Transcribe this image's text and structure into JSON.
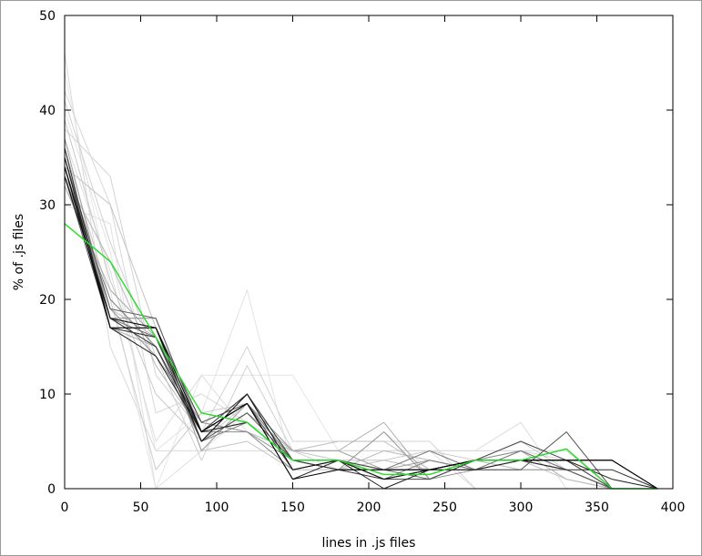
{
  "chart_data": {
    "type": "line",
    "title": "",
    "xlabel": "lines in .js files",
    "ylabel": "% of .js files",
    "xlim": [
      0,
      400
    ],
    "ylim": [
      0,
      50
    ],
    "xticks": [
      0,
      50,
      100,
      150,
      200,
      250,
      300,
      350,
      400
    ],
    "yticks": [
      0,
      10,
      20,
      30,
      40,
      50
    ],
    "grid": false,
    "legend": "none",
    "x": [
      0,
      30,
      60,
      90,
      120,
      150,
      180,
      210,
      240,
      270,
      300,
      330,
      360,
      390
    ],
    "series": [
      {
        "color": "#e6e6e6",
        "values": [
          44,
          21,
          0,
          12,
          12,
          12,
          4,
          4,
          4,
          4,
          4,
          4,
          0,
          0
        ]
      },
      {
        "color": "#e3e3e3",
        "values": [
          40,
          25,
          4,
          8,
          21,
          2,
          2,
          6,
          2,
          2,
          2,
          2,
          0,
          0
        ]
      },
      {
        "color": "#e0e0e0",
        "values": [
          30,
          28,
          0,
          4,
          8,
          4,
          4,
          4,
          4,
          0,
          0,
          0,
          0,
          0
        ]
      },
      {
        "color": "#dddddd",
        "values": [
          37,
          23,
          5,
          12,
          6,
          4,
          4,
          4,
          4,
          4,
          7,
          0,
          0,
          0
        ]
      },
      {
        "color": "#dadada",
        "values": [
          46,
          15,
          4,
          4,
          4,
          4,
          4,
          4,
          4,
          4,
          4,
          4,
          0,
          0
        ]
      },
      {
        "color": "#d7d7d7",
        "values": [
          42,
          30,
          8,
          10,
          7,
          4,
          3,
          3,
          2,
          3,
          4,
          3,
          0,
          0
        ]
      },
      {
        "color": "#d3d3d3",
        "values": [
          38,
          33,
          12,
          6,
          15,
          5,
          5,
          5,
          5,
          0,
          0,
          0,
          0,
          0
        ]
      },
      {
        "color": "#d0d0d0",
        "values": [
          41,
          26,
          14,
          3,
          13,
          4,
          2,
          1,
          2,
          3,
          3,
          2,
          0,
          0
        ]
      },
      {
        "color": "#cccccc",
        "values": [
          36,
          20,
          2,
          8,
          9,
          4,
          3,
          3,
          4,
          3,
          5,
          2,
          0,
          0
        ]
      },
      {
        "color": "#c8c8c8",
        "values": [
          39,
          22,
          10,
          5,
          9,
          3,
          3,
          2,
          2,
          3,
          2,
          2,
          0,
          0
        ]
      },
      {
        "color": "#c4c4c4",
        "values": [
          34,
          30,
          17,
          4,
          5,
          2,
          2,
          3,
          2,
          2,
          3,
          1,
          0,
          0
        ]
      },
      {
        "color": "#bebebe",
        "values": [
          35,
          19,
          16,
          7,
          6,
          4,
          5,
          5,
          2,
          3,
          2,
          2,
          0,
          0
        ]
      },
      {
        "color": "#b8b8b8",
        "values": [
          33,
          24,
          13,
          6,
          10,
          3,
          2,
          4,
          3,
          2,
          4,
          1,
          0,
          0
        ]
      },
      {
        "color": "#b0b0b0",
        "values": [
          36,
          17,
          15,
          5,
          8,
          4,
          4,
          7,
          1,
          3,
          3,
          3,
          0,
          0
        ]
      },
      {
        "color": "#a8a8a8",
        "values": [
          32,
          21,
          16,
          6,
          7,
          3,
          3,
          2,
          2,
          2,
          3,
          2,
          0,
          0
        ]
      },
      {
        "color": "#9e9e9e",
        "values": [
          37,
          18,
          17,
          4,
          9,
          4,
          4,
          2,
          3,
          2,
          2,
          2,
          0,
          0
        ]
      },
      {
        "color": "#959595",
        "values": [
          34,
          19,
          14,
          7,
          6,
          3,
          2,
          6,
          1,
          2,
          3,
          2,
          0,
          0
        ]
      },
      {
        "color": "#8a8a8a",
        "values": [
          35,
          18,
          18,
          6,
          6,
          2,
          3,
          2,
          2,
          3,
          4,
          2,
          0,
          0
        ]
      },
      {
        "color": "#808080",
        "values": [
          33,
          20,
          15,
          5,
          7,
          3,
          3,
          1,
          3,
          2,
          3,
          2,
          0,
          0
        ]
      },
      {
        "color": "#757575",
        "values": [
          36,
          17,
          17,
          6,
          9,
          3,
          2,
          2,
          4,
          2,
          4,
          2,
          0,
          0
        ]
      },
      {
        "color": "#6a6a6a",
        "values": [
          34,
          18,
          16,
          5,
          10,
          2,
          3,
          2,
          1,
          3,
          3,
          2,
          0,
          0
        ]
      },
      {
        "color": "#5e5e5e",
        "values": [
          35,
          19,
          18,
          6,
          7,
          3,
          2,
          2,
          2,
          3,
          3,
          3,
          0,
          0
        ]
      },
      {
        "color": "#525252",
        "values": [
          33,
          17,
          16,
          5,
          8,
          3,
          3,
          2,
          2,
          2,
          2,
          6,
          0,
          0
        ]
      },
      {
        "color": "#464646",
        "values": [
          34,
          18,
          17,
          7,
          9,
          2,
          3,
          1,
          1,
          3,
          5,
          3,
          0,
          0
        ]
      },
      {
        "color": "#393939",
        "values": [
          36,
          17,
          16,
          6,
          10,
          3,
          2,
          1,
          2,
          3,
          3,
          3,
          3,
          0
        ]
      },
      {
        "color": "#2c2c2c",
        "values": [
          34,
          18,
          15,
          6,
          7,
          3,
          3,
          1,
          2,
          3,
          3,
          2,
          2,
          0
        ]
      },
      {
        "color": "#1e1e1e",
        "values": [
          35,
          17,
          14,
          6,
          9,
          1,
          3,
          0,
          2,
          2,
          3,
          3,
          1,
          0
        ]
      },
      {
        "color": "#141414",
        "values": [
          33,
          18,
          17,
          5,
          10,
          2,
          3,
          1,
          2,
          3,
          3,
          3,
          3,
          0
        ]
      },
      {
        "color": "#000000",
        "values": [
          34,
          17,
          17,
          6,
          9,
          1,
          2,
          2,
          2,
          3,
          3,
          3,
          3,
          0
        ]
      },
      {
        "color": "#22dd22",
        "values": [
          28,
          24,
          16,
          8,
          7,
          3,
          3,
          1.5,
          1.5,
          3,
          3,
          4.2,
          0,
          0
        ]
      }
    ]
  }
}
